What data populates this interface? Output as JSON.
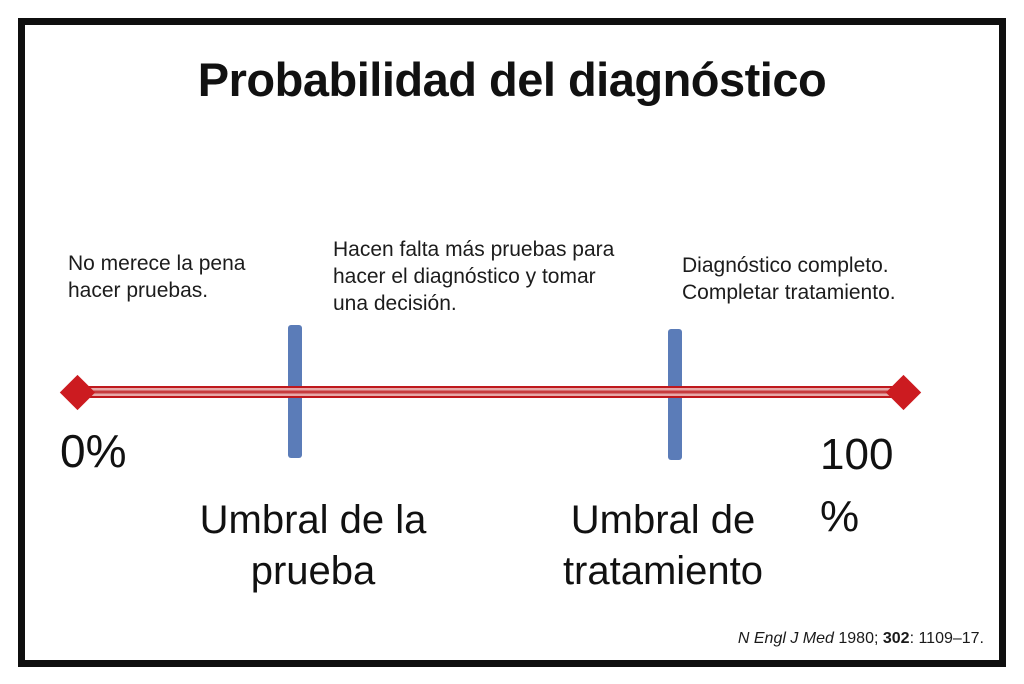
{
  "title": "Probabilidad del diagnóstico",
  "annotations": {
    "left": {
      "lines": [
        "No merece la pena",
        "hacer pruebas."
      ]
    },
    "middle": {
      "lines": [
        "Hacen falta más pruebas para",
        "hacer el diagnóstico y tomar",
        "una decisión."
      ]
    },
    "right": {
      "lines": [
        "Diagnóstico completo.",
        "Completar tratamiento."
      ]
    }
  },
  "axis": {
    "start_label": "0%",
    "end_label_lines": [
      "100",
      "%"
    ],
    "line_color": "#bf181d",
    "endpoint_marker": "diamond-icon",
    "endpoint_color": "#cc1b20"
  },
  "thresholds": [
    {
      "id": "test",
      "label_lines": [
        "Umbral de la",
        "prueba"
      ],
      "position_percent": 26,
      "bar_color": "#5b7cb8"
    },
    {
      "id": "treatment",
      "label_lines": [
        "Umbral de",
        "tratamiento"
      ],
      "position_percent": 72,
      "bar_color": "#5b7cb8"
    }
  ],
  "citation": {
    "journal": "N Engl J Med",
    "year": " 1980; ",
    "volume": "302",
    "pages": ": 1109–17."
  }
}
